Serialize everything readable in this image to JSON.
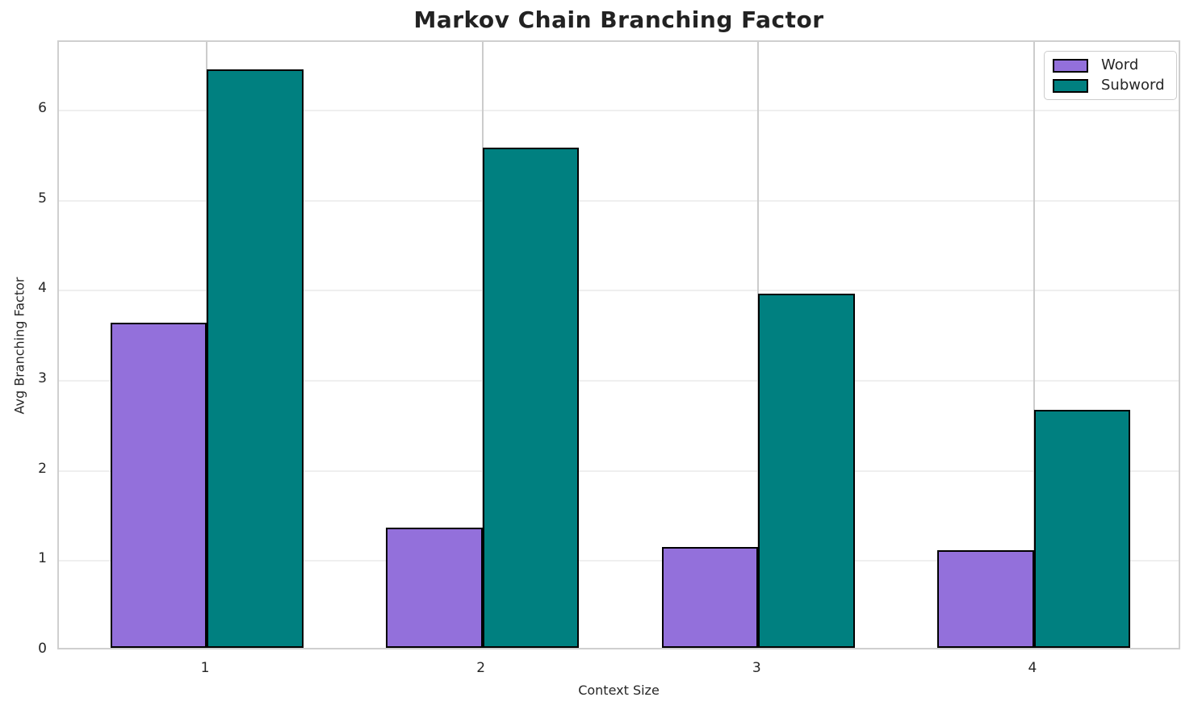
{
  "chart_data": {
    "type": "bar",
    "title": "Markov Chain Branching Factor",
    "xlabel": "Context Size",
    "ylabel": "Avg Branching Factor",
    "categories": [
      "1",
      "2",
      "3",
      "4"
    ],
    "series": [
      {
        "name": "Word",
        "color": "#9370DB",
        "values": [
          3.61,
          1.33,
          1.12,
          1.08
        ]
      },
      {
        "name": "Subword",
        "color": "#008080",
        "values": [
          6.42,
          5.55,
          3.93,
          2.64
        ]
      }
    ],
    "bar_edge_color": "#000000",
    "bar_width_units": 0.35,
    "xlim": [
      -0.536,
      3.536
    ],
    "ylim": [
      0,
      6.76
    ],
    "yticks": [
      0,
      1,
      2,
      3,
      4,
      5,
      6
    ],
    "grid": "on",
    "grid_color_horizontal": "#efefef",
    "grid_color_vertical": "#cccccc",
    "spine_color": "#cfcfcf",
    "text_color": "#262626",
    "legend_position": "upper right"
  }
}
